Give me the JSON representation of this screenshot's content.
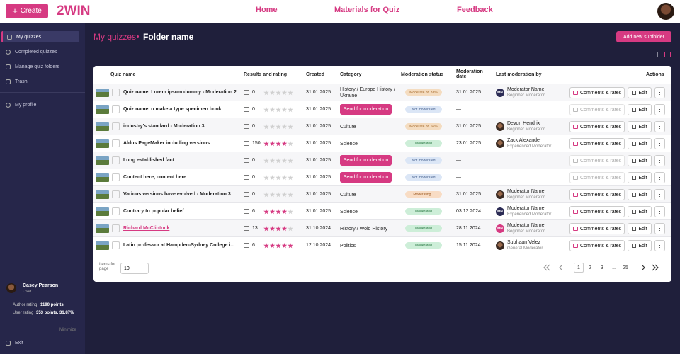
{
  "header": {
    "create": "Create",
    "logo": "2WIN",
    "nav": [
      "Home",
      "Materials for Quiz",
      "Feedback"
    ]
  },
  "sidebar": {
    "items": [
      "My quizzes",
      "Completed quizzes",
      "Manage quiz folders",
      "Trash",
      "My profile"
    ],
    "user": {
      "name": "Casey Pearson",
      "role": "User"
    },
    "author_rating": {
      "label": "Author rating",
      "value": "1190 points"
    },
    "user_rating": {
      "label": "User rating",
      "value": "353 points, 31.87%"
    },
    "minimize": "Minimize",
    "exit": "Exit"
  },
  "breadcrumb": {
    "parent": "My quizzes",
    "current": "Folder name"
  },
  "add_subfolder": "Add new subfolder",
  "table": {
    "headers": [
      "Quiz name",
      "Results and rating",
      "Created",
      "Category",
      "Moderation status",
      "Moderation date",
      "Last moderation by",
      "Actions"
    ],
    "send": "Send for moderation",
    "comments": "Comments & rates",
    "edit": "Edit",
    "rows": [
      {
        "name": "Quiz name. Lorem ipsum dummy - Moderation 2",
        "results": 0,
        "rating": 0,
        "created": "31.01.2025",
        "category": "History / Europe History / Ukraine",
        "status": "Moderate on 33%",
        "date": "31.01.2025",
        "moderator": "Moderator Name",
        "mod_role": "Beginner Moderator",
        "initials": "MN"
      },
      {
        "name": "Quiz name. o make a type specimen book",
        "results": 0,
        "rating": 0,
        "created": "31.01.2025",
        "category": null,
        "status": "Not moderated",
        "date": "—",
        "moderator": null,
        "mod_role": null,
        "initials": null
      },
      {
        "name": "industry's standard - Moderation 3",
        "results": 0,
        "rating": 0,
        "created": "31.01.2025",
        "category": "Culture",
        "status": "Moderate on 66%",
        "date": "31.01.2025",
        "moderator": "Devon Hendrix",
        "mod_role": "Beginner Moderator",
        "initials": null
      },
      {
        "name": "Aldus PageMaker including versions",
        "results": 150,
        "rating": 4,
        "created": "31.01.2025",
        "category": "Science",
        "status": "Moderated",
        "date": "23.01.2025",
        "moderator": "Zack Alexander",
        "mod_role": "Experienced Moderator",
        "initials": null
      },
      {
        "name": "Long established fact",
        "results": 0,
        "rating": 0,
        "created": "31.01.2025",
        "category": null,
        "status": "Not moderated",
        "date": "—",
        "moderator": null,
        "mod_role": null,
        "initials": null
      },
      {
        "name": "Content here, content here",
        "results": 0,
        "rating": 0,
        "created": "31.01.2025",
        "category": null,
        "status": "Not moderated",
        "date": "—",
        "moderator": null,
        "mod_role": null,
        "initials": null
      },
      {
        "name": "Various versions have evolved - Moderation 3",
        "results": 0,
        "rating": 0,
        "created": "31.01.2025",
        "category": "Culture",
        "status": "Moderating...",
        "date": "31.01.2025",
        "moderator": "Moderator Name",
        "mod_role": "Beginner Moderator",
        "initials": null
      },
      {
        "name": "Contrary to popular belief",
        "results": 6,
        "rating": 4,
        "created": "31.01.2025",
        "category": "Science",
        "status": "Moderated",
        "date": "03.12.2024",
        "moderator": "Moderator Name",
        "mod_role": "Experienced Moderator",
        "initials": "MN"
      },
      {
        "name": "Richard McClintock",
        "results": 13,
        "rating": 4,
        "created": "31.10.2024",
        "category": "History / Wold History",
        "status": "Moderated",
        "date": "28.11.2024",
        "moderator": "Moderator Name",
        "mod_role": "Beginner Moderator",
        "initials": "MN"
      },
      {
        "name": "Latin professor at Hampden-Sydney College i...",
        "results": 6,
        "rating": 5,
        "created": "12.10.2024",
        "category": "Politics",
        "status": "Moderated",
        "date": "15.11.2024",
        "moderator": "Subhaan Velez",
        "mod_role": "General Moderator",
        "initials": null
      }
    ]
  },
  "pagination": {
    "items_label": "Items for page",
    "per_page": "10",
    "pages": [
      "1",
      "2",
      "3",
      "...",
      "25"
    ]
  }
}
